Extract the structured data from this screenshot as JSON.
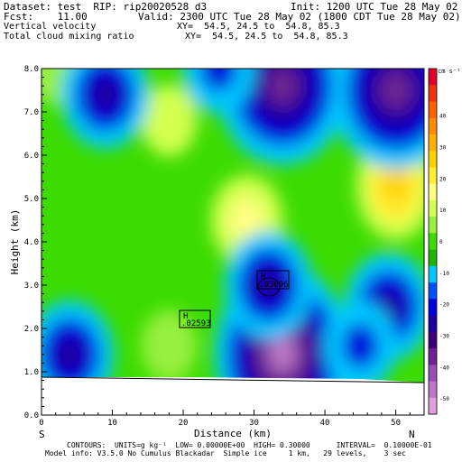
{
  "header": {
    "dataset_line": "Dataset: test  RIP: rip20020528 d3",
    "init_line": "Init: 1200 UTC Tue 28 May 02",
    "fcst_line": "Fcst:    11.00",
    "valid_line": "Valid: 2300 UTC Tue 28 May 02 (1800 CDT Tue 28 May 02)",
    "field1_name": "Vertical velocity",
    "field1_xy": "XY=  54.5, 24.5 to  54.8, 85.3",
    "field2_name": "Total cloud mixing ratio",
    "field2_xy": "XY=  54.5, 24.5 to  54.8, 85.3"
  },
  "footer": {
    "contours_line": "CONTOURS:  UNITS=g kg⁻¹  LOW= 0.00000E+00  HIGH= 0.30000      INTERVAL=  0.10000E-01",
    "model_line": "Model info: V3.5.0 No Cumulus Blackadar  Simple ice     1 km,   29 levels,    3 sec"
  },
  "orientation": {
    "left": "S",
    "right": "N"
  },
  "colorbar": {
    "units": "cm s⁻¹",
    "tick_labels": [
      "40",
      "30",
      "20",
      "10",
      "0",
      "-10",
      "-20",
      "-30",
      "-40",
      "-50"
    ],
    "colors": [
      "#e2002a",
      "#f03210",
      "#ff6000",
      "#ff8c00",
      "#ffb000",
      "#ffd200",
      "#ffee33",
      "#ffff80",
      "#d2ff50",
      "#96f03c",
      "#3cdc00",
      "#1eb400",
      "#00c8ff",
      "#0050ff",
      "#0000dc",
      "#1e00a0",
      "#3c0078",
      "#6c2290",
      "#9650b4",
      "#be78c8",
      "#dca0dc"
    ]
  },
  "annotations": [
    {
      "label": "H",
      "value": ".02593"
    },
    {
      "label": "H",
      "value": ".03696"
    }
  ],
  "chart_data": {
    "type": "heatmap",
    "title": "Vertical velocity / Total cloud mixing ratio",
    "xlabel": "Distance (km)",
    "ylabel": "Height (km)",
    "xlim": [
      0,
      54
    ],
    "ylim": [
      0,
      8
    ],
    "x_ticks": [
      "0",
      "10",
      "20",
      "30",
      "40",
      "50"
    ],
    "y_ticks": [
      "0.0",
      "1.0",
      "2.0",
      "3.0",
      "4.0",
      "5.0",
      "6.0",
      "7.0",
      "8.0"
    ],
    "colorbar_range_cm_s": [
      -55,
      55
    ],
    "terrain_height_km": [
      0.9,
      0.9,
      0.85,
      0.85
    ],
    "terrain_x_km": [
      0,
      20,
      45,
      54
    ],
    "features": [
      {
        "name": "updraft core",
        "x": 50,
        "y": 5.3,
        "value": 30
      },
      {
        "name": "updraft",
        "x": 29,
        "y": 4.5,
        "value": 15
      },
      {
        "name": "updraft",
        "x": 18,
        "y": 6.8,
        "value": 10
      },
      {
        "name": "updraft",
        "x": 18,
        "y": 1.6,
        "value": 5
      },
      {
        "name": "updraft",
        "x": 41,
        "y": 8.0,
        "value": 5
      },
      {
        "name": "updraft",
        "x": 2,
        "y": 8.0,
        "value": 5
      },
      {
        "name": "downdraft core",
        "x": 34,
        "y": 1.4,
        "value": -50
      },
      {
        "name": "downdraft",
        "x": 50,
        "y": 7.5,
        "value": -40
      },
      {
        "name": "downdraft",
        "x": 34,
        "y": 7.6,
        "value": -40
      },
      {
        "name": "downdraft",
        "x": 9,
        "y": 7.4,
        "value": -30
      },
      {
        "name": "downdraft",
        "x": 25,
        "y": 8.0,
        "value": -20
      },
      {
        "name": "downdraft",
        "x": 49,
        "y": 2.5,
        "value": -30
      },
      {
        "name": "downdraft",
        "x": 4,
        "y": 1.4,
        "value": -25
      },
      {
        "name": "downdraft",
        "x": 32,
        "y": 3.0,
        "value": -25
      },
      {
        "name": "downdraft",
        "x": 45,
        "y": 1.6,
        "value": -20
      }
    ]
  }
}
